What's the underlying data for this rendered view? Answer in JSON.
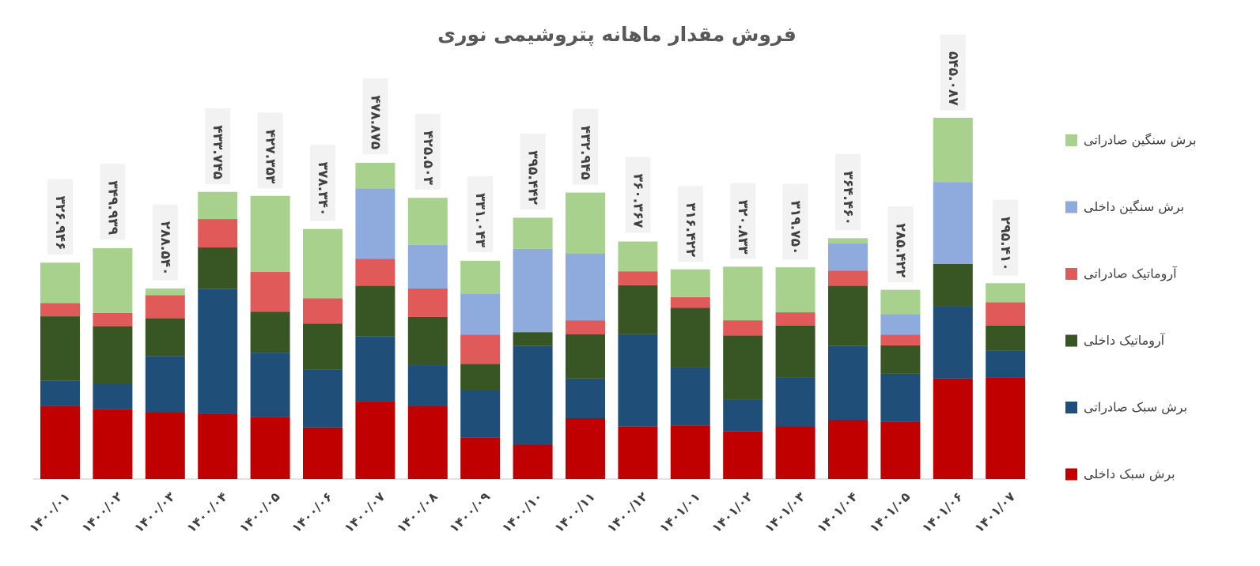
{
  "chart_data": {
    "type": "stacked_bar",
    "title": "فروش مقدار ماهانه پتروشیمی نوری",
    "categories": [
      "۱۴۰۰/۰۱",
      "۱۴۰۰/۰۲",
      "۱۴۰۰/۰۳",
      "۱۴۰۰/۰۴",
      "۱۴۰۰/۰۵",
      "۱۴۰۰/۰۶",
      "۱۴۰۰/۰۷",
      "۱۴۰۰/۰۸",
      "۱۴۰۰/۰۹",
      "۱۴۰۰/۱۰",
      "۱۴۰۰/۱۱",
      "۱۴۰۰/۱۲",
      "۱۴۰۱/۰۱",
      "۱۴۰۱/۰۲",
      "۱۴۰۱/۰۳",
      "۱۴۰۱/۰۴",
      "۱۴۰۱/۰۵",
      "۱۴۰۱/۰۶",
      "۱۴۰۱/۰۷"
    ],
    "series": [
      {
        "name": "برش سبک داخلی",
        "color": "#c00000",
        "values": [
          110,
          106,
          101,
          98,
          94,
          78,
          117,
          111,
          63,
          52,
          92,
          79,
          81,
          72,
          80,
          89,
          87,
          152,
          153
        ]
      },
      {
        "name": "برش سبک صادراتی",
        "color": "#1f4e79",
        "values": [
          39,
          38,
          85,
          189,
          97,
          87,
          99,
          61,
          72,
          149,
          60,
          140,
          88,
          48,
          73,
          112,
          72,
          109,
          41
        ]
      },
      {
        "name": "آروماتیک داخلی",
        "color": "#375623",
        "values": [
          97,
          87,
          57,
          63,
          62,
          70,
          76,
          73,
          39,
          21,
          67,
          74,
          90,
          97,
          79,
          91,
          43,
          64,
          38
        ]
      },
      {
        "name": "آروماتیک صادراتی",
        "color": "#e05a5a",
        "values": [
          20,
          20,
          35,
          43,
          60,
          38,
          41,
          43,
          44,
          0,
          21,
          21,
          16,
          23,
          20,
          23,
          16,
          0,
          35
        ]
      },
      {
        "name": "برش سنگین داخلی",
        "color": "#8faadc",
        "values": [
          0,
          0,
          0,
          0,
          0,
          0,
          106,
          66,
          62,
          126,
          101,
          0,
          0,
          0,
          0,
          41,
          31,
          124,
          0
        ]
      },
      {
        "name": "برش سنگین صادراتی",
        "color": "#a9d18e",
        "values": [
          61,
          98,
          10,
          41,
          115,
          105,
          39,
          71,
          50,
          47,
          92,
          45,
          42,
          81,
          68,
          8,
          37,
          97,
          29
        ]
      }
    ],
    "totals": [
      326.946,
      349.939,
      288.54,
      433.745,
      427.353,
      378.34,
      478.875,
      425.503,
      331.043,
      395.442,
      432.945,
      360.367,
      316.422,
      320.833,
      319.75,
      364.46,
      285.422,
      545.087,
      295.41
    ],
    "total_labels": [
      "۳۲۶.۹۴۶",
      "۳۴۹.۹۳۹",
      "۲۸۸.۵۴۰",
      "۴۳۳.۷۴۵",
      "۴۲۷.۳۵۳",
      "۳۷۸.۳۴۰",
      "۴۷۸.۸۷۵",
      "۴۲۵.۵۰۳",
      "۳۳۱.۰۴۳",
      "۳۹۵.۴۴۲",
      "۴۳۲.۹۴۵",
      "۳۶۰.۳۶۷",
      "۳۱۶.۴۲۲",
      "۳۲۰.۸۳۳",
      "۳۱۹.۷۵۰",
      "۳۶۴.۴۶۰",
      "۲۸۵.۴۲۲",
      "۵۴۵.۰۸۷",
      "۲۹۵.۴۱۰"
    ],
    "legend": "right"
  }
}
